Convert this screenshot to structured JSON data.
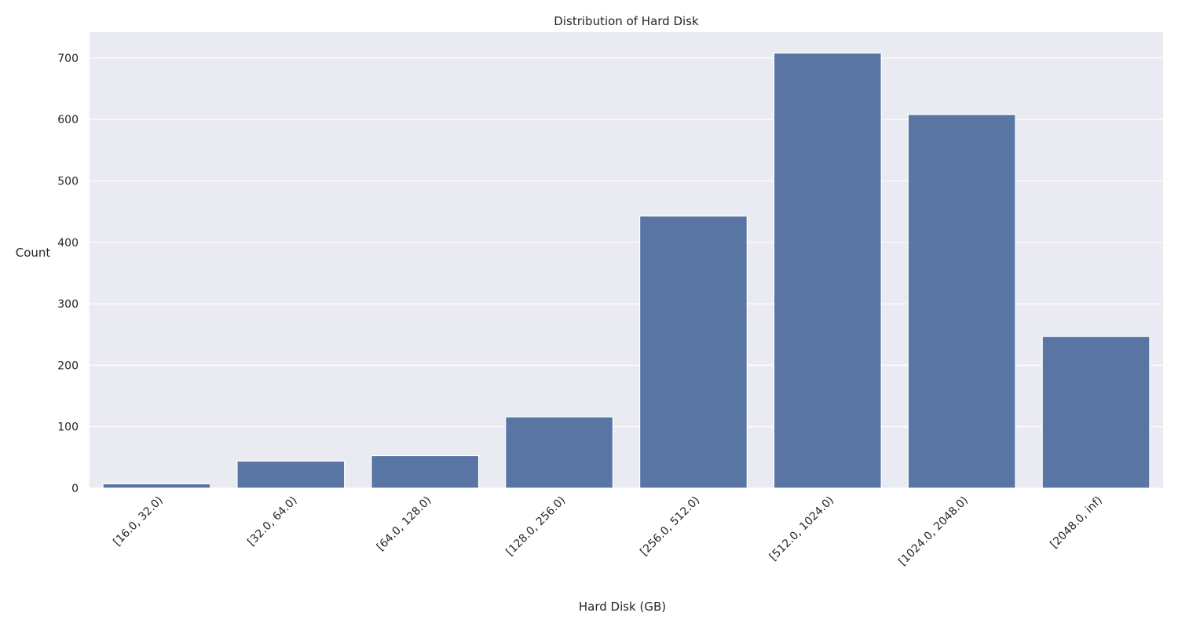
{
  "chart_data": {
    "type": "bar",
    "title": "Distribution of Hard Disk",
    "xlabel": "Hard Disk (GB)",
    "ylabel": "Count",
    "categories": [
      "[16.0, 32.0)",
      "[32.0, 64.0)",
      "[64.0, 128.0)",
      "[128.0, 256.0)",
      "[256.0, 512.0)",
      "[512.0, 1024.0)",
      "[1024.0, 2048.0)",
      "[2048.0, inf)"
    ],
    "values": [
      7,
      44,
      53,
      116,
      443,
      708,
      608,
      247
    ],
    "ylim": [
      0,
      742
    ],
    "yticks": [
      0,
      100,
      200,
      300,
      400,
      500,
      600,
      700
    ],
    "grid": true,
    "legend": "none",
    "colors": {
      "bar": "#5975a4",
      "plot_background": "#eaeaf2",
      "grid": "#ffffff",
      "text": "#262626"
    }
  }
}
